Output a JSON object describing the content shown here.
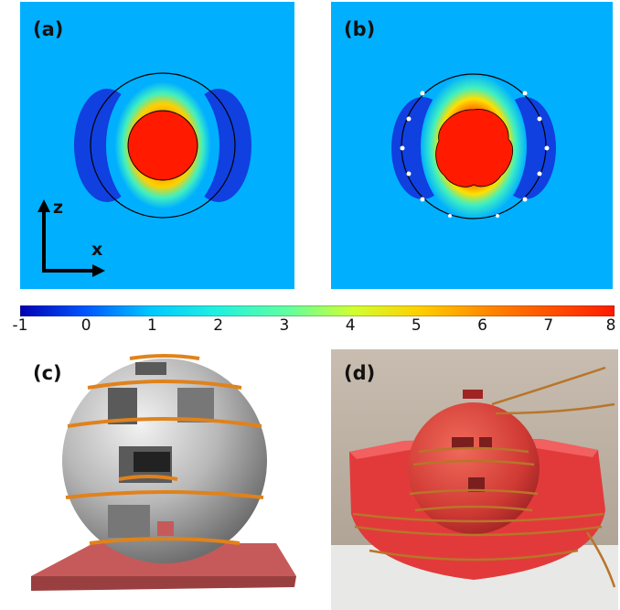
{
  "panels": {
    "a": {
      "label": "(a)"
    },
    "b": {
      "label": "(b)"
    },
    "c": {
      "label": "(c)"
    },
    "d": {
      "label": "(d)"
    }
  },
  "axes": {
    "z_label": "z",
    "x_label": "x"
  },
  "colorbar": {
    "ticks": [
      "-1",
      "0",
      "1",
      "2",
      "3",
      "4",
      "5",
      "6",
      "7",
      "8"
    ],
    "min": -1,
    "max": 8,
    "colormap": [
      "#0000b4",
      "#0055ff",
      "#00c8ff",
      "#20f0c0",
      "#a0ff40",
      "#ffe000",
      "#ff8000",
      "#ff2000"
    ]
  },
  "colors": {
    "field_background": "#00b0ff",
    "inner_sphere": "#ff1a00",
    "model_sphere": "#bdbdbd",
    "coil_orange": "#e0821c",
    "base_plate": "#c65a5a",
    "printed_red": "#e23a3a"
  }
}
